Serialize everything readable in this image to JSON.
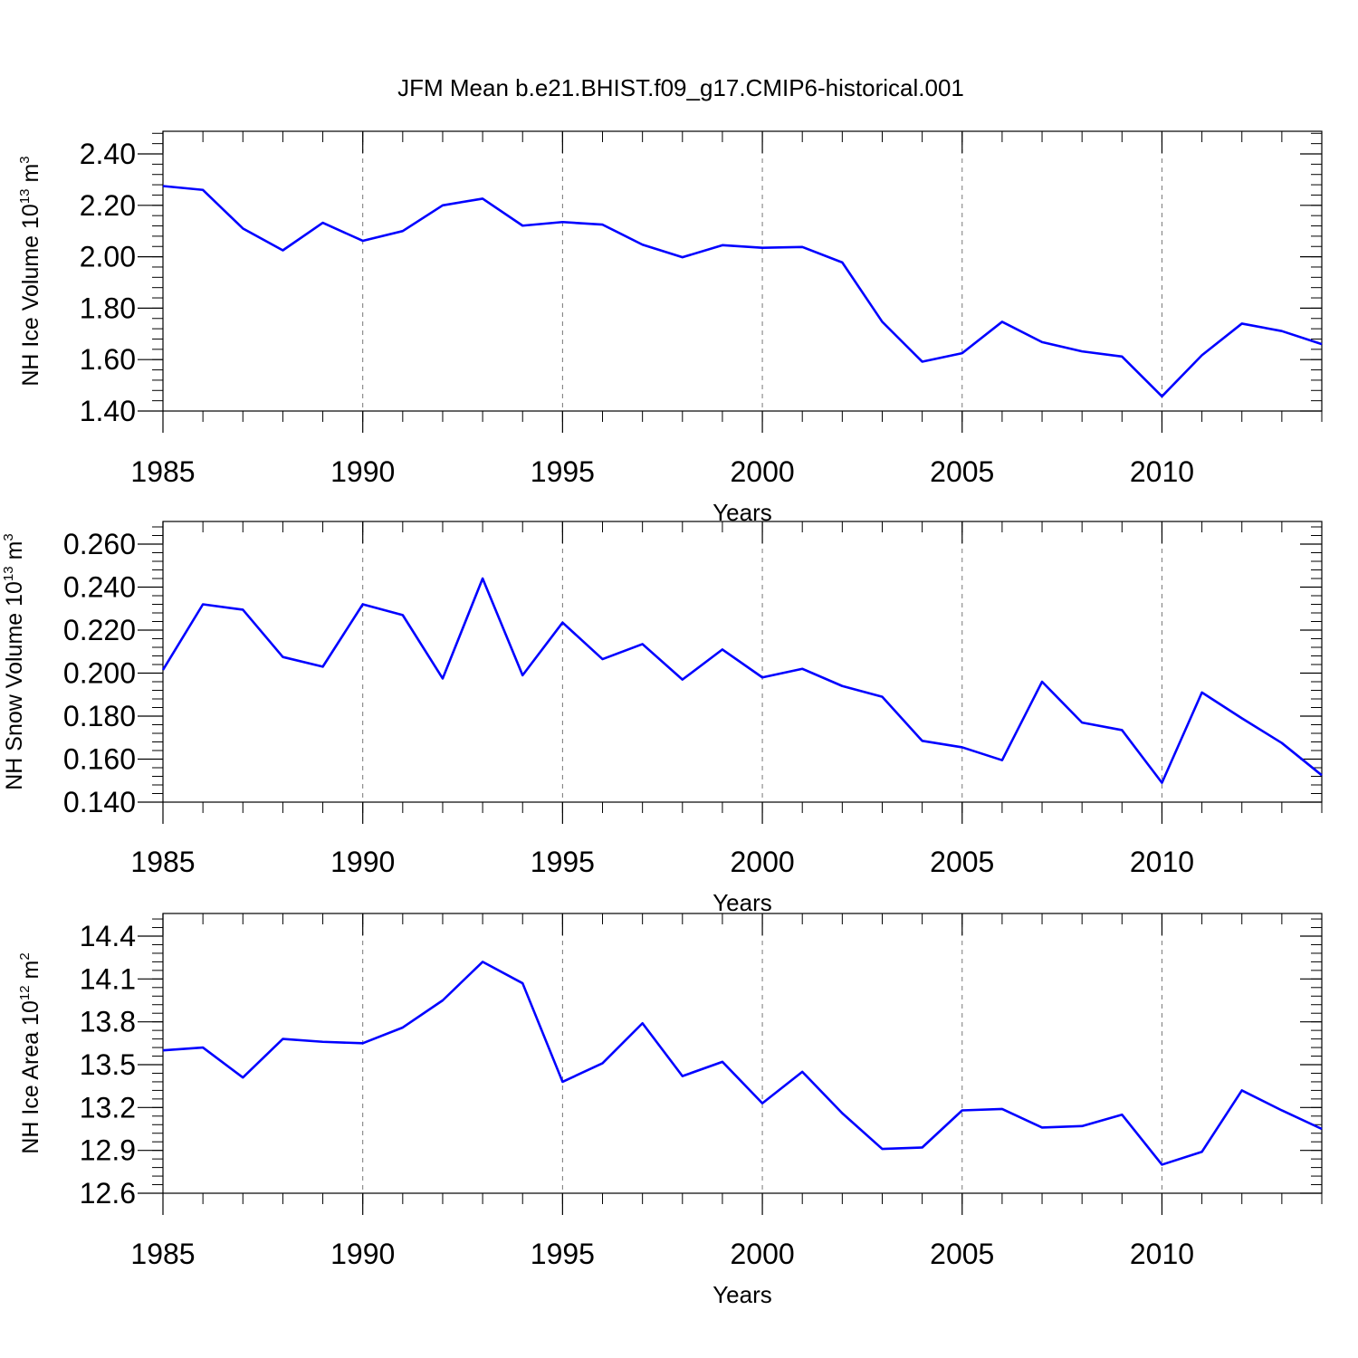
{
  "title": "JFM Mean b.e21.BHIST.f09_g17.CMIP6-historical.001",
  "colors": {
    "series": "#0000ff",
    "axis": "#000000",
    "grid": "#777777"
  },
  "chart_data": [
    {
      "type": "line",
      "ylabel": {
        "text": "NH Ice Volume 10",
        "sup": "13",
        "unit": " m",
        "unit_sup": "3"
      },
      "xlabel": "Years",
      "xlim": [
        1985,
        2014
      ],
      "ylim": [
        1.4,
        2.5
      ],
      "yticks": [
        "2.40",
        "2.20",
        "2.00",
        "1.80",
        "1.60",
        "1.40"
      ],
      "ytick_values": [
        2.4,
        2.2,
        2.0,
        1.8,
        1.6,
        1.4
      ],
      "xticks": [
        "1985",
        "1990",
        "1995",
        "2000",
        "2005",
        "2010"
      ],
      "x": [
        1985,
        1986,
        1987,
        1988,
        1989,
        1990,
        1991,
        1992,
        1993,
        1994,
        1995,
        1996,
        1997,
        1998,
        1999,
        2000,
        2001,
        2002,
        2003,
        2004,
        2005,
        2006,
        2007,
        2008,
        2009,
        2010,
        2011,
        2012,
        2013,
        2014
      ],
      "values": [
        2.275,
        2.26,
        2.11,
        2.025,
        2.132,
        2.062,
        2.1,
        2.2,
        2.226,
        2.121,
        2.135,
        2.125,
        2.047,
        1.998,
        2.045,
        2.035,
        2.038,
        1.978,
        1.747,
        1.592,
        1.625,
        1.747,
        1.668,
        1.632,
        1.612,
        1.457,
        1.617,
        1.74,
        1.711,
        1.66
      ]
    },
    {
      "type": "line",
      "ylabel": {
        "text": "NH Snow Volume 10",
        "sup": "13",
        "unit": " m",
        "unit_sup": "3"
      },
      "xlabel": "Years",
      "xlim": [
        1985,
        2014
      ],
      "ylim": [
        0.14,
        0.27
      ],
      "yticks": [
        "0.260",
        "0.240",
        "0.220",
        "0.200",
        "0.180",
        "0.160",
        "0.140"
      ],
      "ytick_values": [
        0.26,
        0.24,
        0.22,
        0.2,
        0.18,
        0.16,
        0.14
      ],
      "xticks": [
        "1985",
        "1990",
        "1995",
        "2000",
        "2005",
        "2010"
      ],
      "x": [
        1985,
        1986,
        1987,
        1988,
        1989,
        1990,
        1991,
        1992,
        1993,
        1994,
        1995,
        1996,
        1997,
        1998,
        1999,
        2000,
        2001,
        2002,
        2003,
        2004,
        2005,
        2006,
        2007,
        2008,
        2009,
        2010,
        2011,
        2012,
        2013,
        2014
      ],
      "values": [
        0.2015,
        0.232,
        0.2295,
        0.2075,
        0.203,
        0.232,
        0.227,
        0.1975,
        0.244,
        0.199,
        0.2235,
        0.2065,
        0.2135,
        0.197,
        0.211,
        0.198,
        0.202,
        0.194,
        0.189,
        0.1685,
        0.1655,
        0.1595,
        0.196,
        0.177,
        0.1735,
        0.149,
        0.191,
        0.179,
        0.1675,
        0.1525
      ]
    },
    {
      "type": "line",
      "ylabel": {
        "text": "NH Ice Area 10",
        "sup": "12",
        "unit": " m",
        "unit_sup": "2"
      },
      "xlabel": "Years",
      "xlim": [
        1985,
        2014
      ],
      "ylim": [
        12.6,
        14.6
      ],
      "yticks": [
        "14.4",
        "14.1",
        "13.8",
        "13.5",
        "13.2",
        "12.9",
        "12.6"
      ],
      "ytick_values": [
        14.4,
        14.1,
        13.8,
        13.5,
        13.2,
        12.9,
        12.6
      ],
      "xticks": [
        "1985",
        "1990",
        "1995",
        "2000",
        "2005",
        "2010"
      ],
      "x": [
        1985,
        1986,
        1987,
        1988,
        1989,
        1990,
        1991,
        1992,
        1993,
        1994,
        1995,
        1996,
        1997,
        1998,
        1999,
        2000,
        2001,
        2002,
        2003,
        2004,
        2005,
        2006,
        2007,
        2008,
        2009,
        2010,
        2011,
        2012,
        2013,
        2014
      ],
      "values": [
        13.6,
        13.62,
        13.41,
        13.68,
        13.66,
        13.65,
        13.76,
        13.95,
        14.22,
        14.07,
        13.38,
        13.51,
        13.79,
        13.42,
        13.52,
        13.23,
        13.45,
        13.16,
        12.91,
        12.92,
        13.18,
        13.19,
        13.06,
        13.07,
        13.15,
        12.8,
        12.89,
        13.32,
        13.18,
        13.05
      ]
    }
  ]
}
